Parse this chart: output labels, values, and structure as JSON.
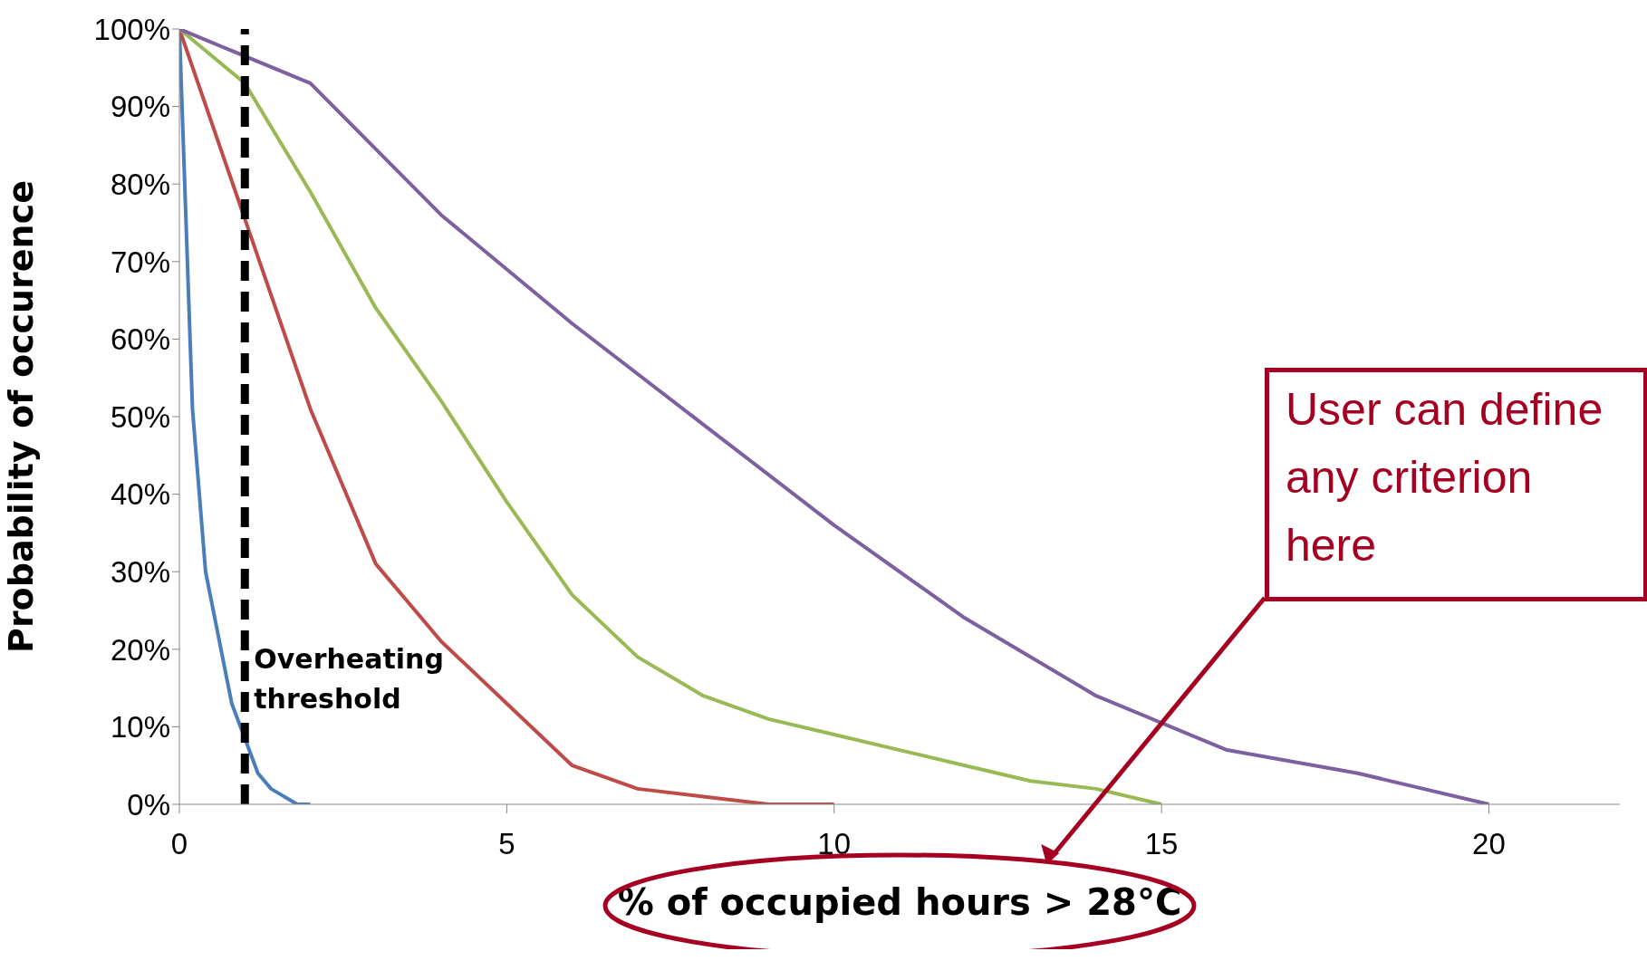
{
  "chart_data": {
    "type": "line",
    "xlabel": "% of occupied hours > 28°C",
    "ylabel": "Probability of occurence",
    "xlim": [
      0,
      22
    ],
    "xticks": [
      0,
      5,
      10,
      15,
      20
    ],
    "ylim": [
      0,
      100
    ],
    "yticks": [
      {
        "value": 0,
        "label": "0%"
      },
      {
        "value": 10,
        "label": "10%"
      },
      {
        "value": 20,
        "label": "20%"
      },
      {
        "value": 30,
        "label": "30%"
      },
      {
        "value": 40,
        "label": "40%"
      },
      {
        "value": 50,
        "label": "50%"
      },
      {
        "value": 60,
        "label": "60%"
      },
      {
        "value": 70,
        "label": "70%"
      },
      {
        "value": 80,
        "label": "80%"
      },
      {
        "value": 90,
        "label": "90%"
      },
      {
        "value": 100,
        "label": "100%"
      }
    ],
    "series": [
      {
        "color": "#4a7ebb",
        "x": [
          0,
          0.2,
          0.4,
          0.8,
          1.2,
          1.4,
          1.8,
          2
        ],
        "values": [
          100,
          51,
          30,
          13,
          4,
          2,
          0,
          0
        ]
      },
      {
        "color": "#be4b48",
        "x": [
          0,
          2,
          3,
          4,
          5,
          6,
          7,
          8,
          9,
          10
        ],
        "values": [
          100,
          51,
          31,
          21,
          13,
          5,
          2,
          1,
          0,
          0
        ]
      },
      {
        "color": "#98b954",
        "x": [
          0,
          1,
          2,
          3,
          4,
          5,
          6,
          7,
          8,
          9,
          10,
          11,
          12,
          13,
          14,
          15
        ],
        "values": [
          100,
          93,
          79,
          64,
          52,
          39,
          27,
          19,
          14,
          11,
          9,
          7,
          5,
          3,
          2,
          0
        ]
      },
      {
        "color": "#7d60a0",
        "x": [
          0,
          2,
          4,
          6,
          8,
          10,
          12,
          14,
          16,
          18,
          20
        ],
        "values": [
          100,
          93,
          76,
          62,
          49,
          36,
          24,
          14,
          7,
          4,
          0
        ]
      }
    ],
    "ref_lines": [
      {
        "axis": "x",
        "value": 1,
        "label": "Overheating threshold",
        "color": "#000000",
        "line_style": "dashed"
      }
    ],
    "annotations": [
      "User can define any criterion here"
    ]
  }
}
